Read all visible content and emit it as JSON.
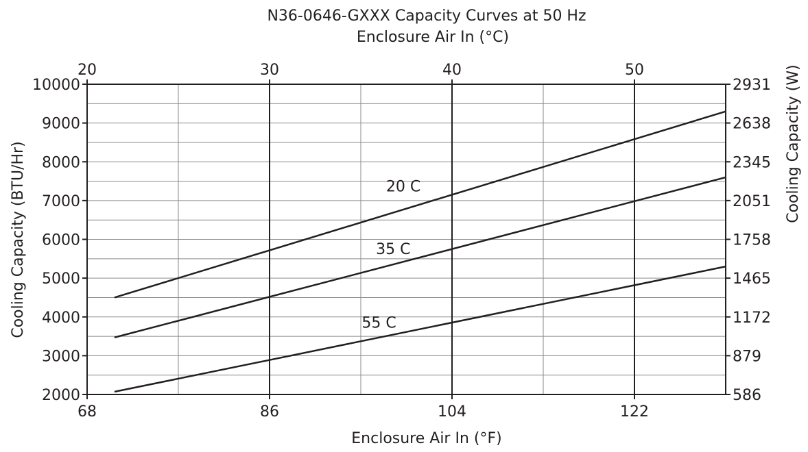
{
  "chart_data": {
    "type": "line",
    "title": "N36-0646-GXXX Capacity Curves at 50 Hz",
    "top_xlabel": "Enclosure Air In (°C)",
    "xlabel": "Enclosure Air In (°F)",
    "ylabel": "Cooling Capacity (BTU/Hr)",
    "right_ylabel": "Cooling Capacity (W)",
    "xlim": [
      68,
      131
    ],
    "ylim": [
      2000,
      10000
    ],
    "top_xlim": [
      20,
      55
    ],
    "x_ticks": [
      "68",
      "86",
      "104",
      "122"
    ],
    "x_tick_values": [
      68,
      86,
      104,
      122
    ],
    "top_x_ticks": [
      "20",
      "30",
      "40",
      "50"
    ],
    "top_x_tick_values": [
      20,
      30,
      40,
      50
    ],
    "y_ticks": [
      "2000",
      "3000",
      "4000",
      "5000",
      "6000",
      "7000",
      "8000",
      "9000",
      "10000"
    ],
    "y_tick_values": [
      2000,
      3000,
      4000,
      5000,
      6000,
      7000,
      8000,
      9000,
      10000
    ],
    "right_y_ticks": [
      "586",
      "879",
      "1172",
      "1465",
      "1758",
      "2051",
      "2345",
      "2638",
      "2931"
    ],
    "grid": true,
    "series": [
      {
        "name": "20 C",
        "x": [
          70.7,
          131
        ],
        "y": [
          4500,
          9300
        ]
      },
      {
        "name": "35 C",
        "x": [
          70.7,
          131
        ],
        "y": [
          3470,
          7600
        ]
      },
      {
        "name": "55 C",
        "x": [
          70.7,
          131
        ],
        "y": [
          2070,
          5300
        ]
      }
    ],
    "curve_labels": [
      {
        "text": "20 C",
        "x": 99.2,
        "y": 7240
      },
      {
        "text": "35 C",
        "x": 98.2,
        "y": 5620
      },
      {
        "text": "55 C",
        "x": 96.8,
        "y": 3720
      }
    ]
  }
}
